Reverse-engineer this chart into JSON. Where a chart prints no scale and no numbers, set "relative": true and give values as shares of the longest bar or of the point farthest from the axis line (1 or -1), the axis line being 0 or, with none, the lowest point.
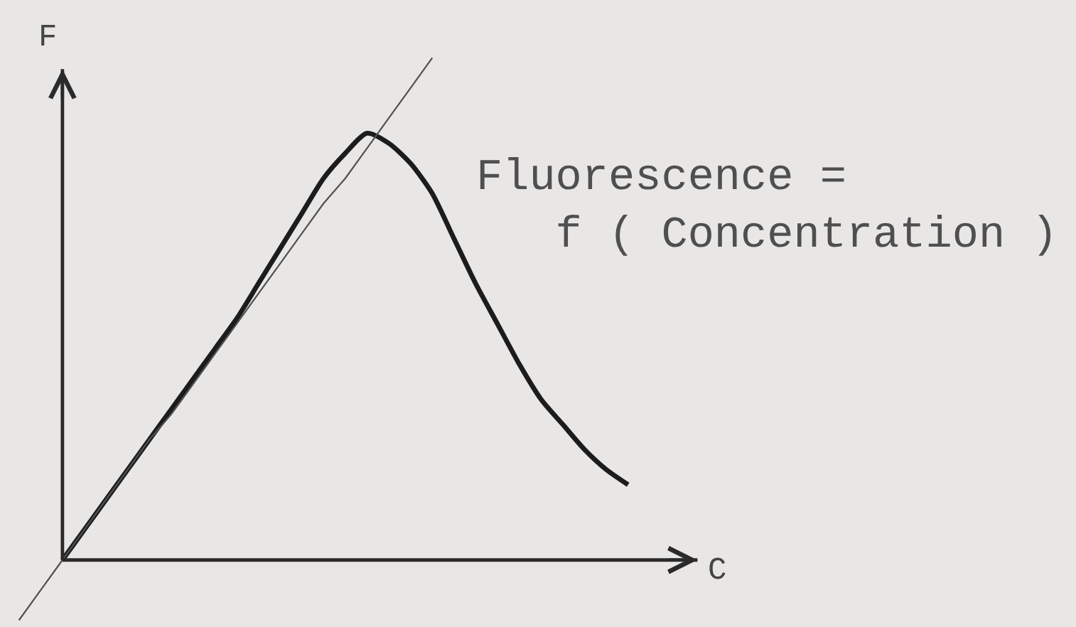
{
  "chart_data": {
    "type": "line",
    "relative": true,
    "xlabel": "C",
    "ylabel": "F",
    "categories": [
      null,
      null,
      null,
      null,
      null,
      null,
      null,
      null,
      null,
      null,
      null,
      null,
      null,
      null,
      null,
      null,
      null,
      null,
      null,
      null,
      null,
      null,
      null,
      null,
      null,
      null,
      null,
      null,
      null
    ],
    "series": [
      {
        "color": "#1c1c1c",
        "values": [
          null,
          null,
          0,
          0.06,
          0.12,
          0.18,
          0.24,
          0.3,
          0.36,
          0.42,
          0.48,
          0.55,
          0.62,
          0.69,
          0.76,
          0.81,
          0.85,
          0.83,
          0.79,
          0.73,
          0.64,
          0.55,
          0.47,
          0.39,
          0.32,
          0.27,
          0.22,
          0.18,
          0.15
        ]
      },
      {
        "color": "#505050",
        "values": [
          -0.12,
          -0.06,
          0,
          0.06,
          0.12,
          0.18,
          0.24,
          0.29,
          0.35,
          0.41,
          0.47,
          0.53,
          0.59,
          0.65,
          0.71,
          0.76,
          0.82,
          0.88,
          0.94,
          1,
          null,
          null,
          null,
          null,
          null,
          null,
          null,
          null,
          null
        ]
      }
    ],
    "annotations": [
      "Fluorescence =\nf ( Concentration )"
    ]
  }
}
